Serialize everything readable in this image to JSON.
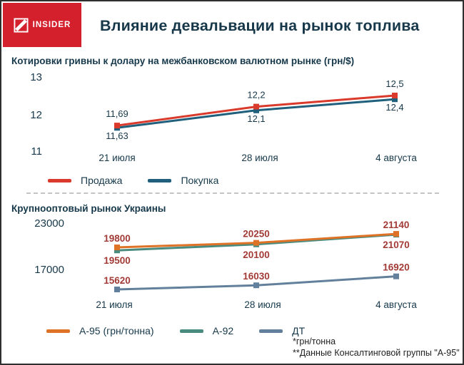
{
  "header": {
    "brand": "INSIDER",
    "title": "Влияние девальвации на рынок топлива"
  },
  "colors": {
    "brand_red": "#d4202c",
    "text_navy": "#16384a",
    "value_label_red": "#a23b36"
  },
  "chart_data": [
    {
      "type": "line",
      "title": "Котировки гривны к долару на межбанковском валютном рынке (грн/$)",
      "categories": [
        "21 июля",
        "28 июля",
        "4 августа"
      ],
      "yticks": [
        "13",
        "12",
        "11"
      ],
      "ylim": [
        11,
        13
      ],
      "grid": false,
      "legend_position": "bottom",
      "value_label_color": "#16384a",
      "series": [
        {
          "name": "Продажа",
          "color": "#d93a2b",
          "values": [
            11.69,
            12.2,
            12.5
          ],
          "labels": [
            "11,69",
            "12,2",
            "12,5"
          ],
          "label_side": [
            "above",
            "above",
            "above"
          ]
        },
        {
          "name": "Покупка",
          "color": "#20607d",
          "values": [
            11.63,
            12.1,
            12.4
          ],
          "labels": [
            "11,63",
            "12,1",
            "12,4"
          ],
          "label_side": [
            "below",
            "below",
            "below"
          ]
        }
      ]
    },
    {
      "type": "line",
      "title": "Крупнооптовый рынок Украины",
      "categories": [
        "21 июля",
        "28 июля",
        "4 августа"
      ],
      "yticks": [
        "23000",
        "17000"
      ],
      "ylim": [
        14500,
        23500
      ],
      "grid": false,
      "legend_position": "bottom",
      "value_label_color": "#a23b36",
      "series": [
        {
          "name": "А-95 (грн/тонна)",
          "color": "#de7327",
          "values": [
            19800,
            20250,
            21140
          ],
          "labels": [
            "19800",
            "20250",
            "21140"
          ],
          "label_side": [
            "above",
            "above",
            "above"
          ]
        },
        {
          "name": "А-92",
          "color": "#4a8b7f",
          "values": [
            19500,
            20100,
            21070
          ],
          "labels": [
            "19500",
            "20100",
            "21070"
          ],
          "label_side": [
            "below",
            "below",
            "below"
          ]
        },
        {
          "name": "ДТ",
          "color": "#62809b",
          "values": [
            15620,
            16030,
            16920
          ],
          "labels": [
            "15620",
            "16030",
            "16920"
          ],
          "label_side": [
            "above",
            "above",
            "above"
          ]
        }
      ],
      "footnotes": [
        "*грн/тонна",
        "**Данные Консалтинговой группы \"А-95\""
      ]
    }
  ]
}
